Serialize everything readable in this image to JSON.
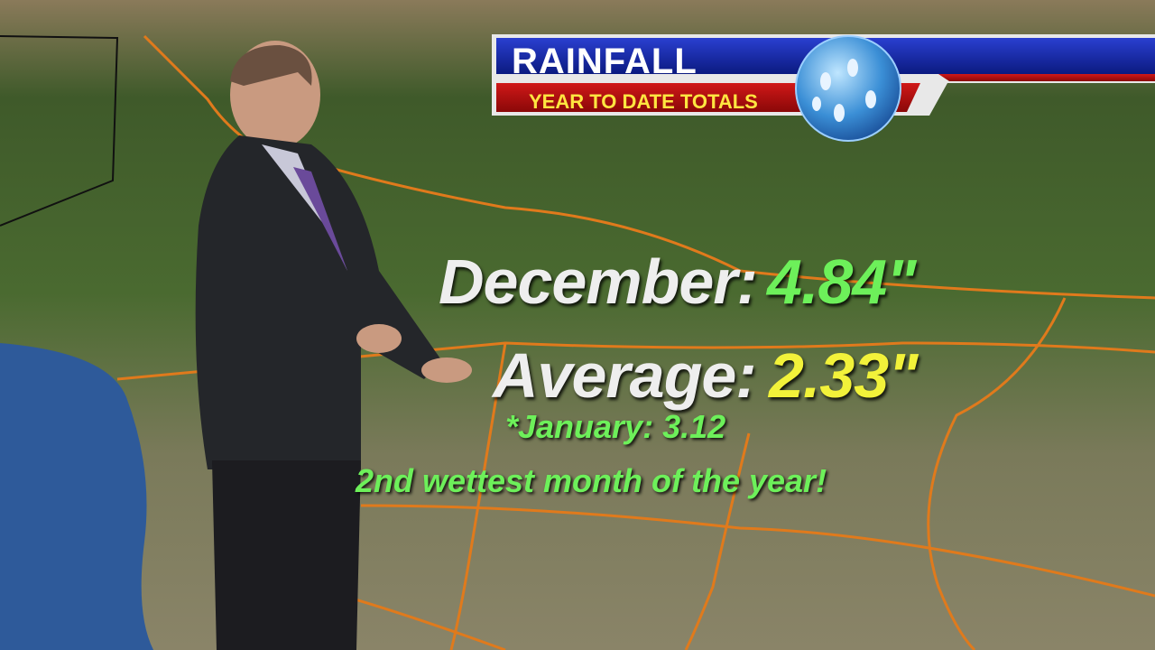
{
  "header": {
    "title": "RAINFALL",
    "subtitle": "YEAR TO DATE TOTALS"
  },
  "stats": [
    {
      "label": "December:",
      "value": "4.84\""
    },
    {
      "label": "Average:",
      "value": "2.33\""
    }
  ],
  "notes": [
    "*January: 3.12",
    "2nd wettest month of the year!"
  ]
}
